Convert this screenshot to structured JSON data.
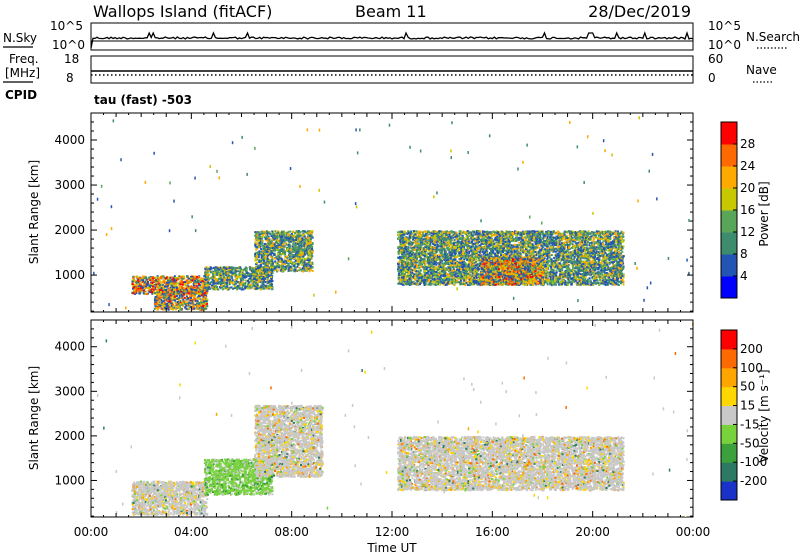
{
  "header": {
    "station": "Wallops Island (fitACF)",
    "beam": "Beam 11",
    "date": "28/Dec/2019"
  },
  "noise_panel": {
    "left_label": "N.Sky",
    "left_ticks": [
      "10^5",
      "10^0"
    ],
    "right_label": "N.Search",
    "right_ticks": [
      "10^5",
      "10^0"
    ]
  },
  "freq_panel": {
    "left_label_1": "Freq.",
    "left_label_2": "[MHz]",
    "left_ticks": [
      "18",
      "8"
    ],
    "cpid_label": "CPID",
    "right_label": "Nave",
    "right_ticks": [
      "60",
      "0"
    ],
    "mode_text": "tau (fast) -503"
  },
  "chart_data": [
    {
      "type": "heatmap",
      "panel": "power",
      "ylabel": "Slant Range [km]",
      "ylim": [
        180,
        4600
      ],
      "yticks": [
        1000,
        2000,
        3000,
        4000
      ],
      "xlim": [
        0,
        24
      ],
      "colorbar": {
        "label": "Power [dB]",
        "ticks": [
          "4",
          "8",
          "12",
          "16",
          "20",
          "24",
          "28"
        ],
        "colors": [
          "#0000ff",
          "#2356b4",
          "#3d8c6e",
          "#5aa658",
          "#c8c800",
          "#ffaa00",
          "#ff6a00",
          "#ff0000"
        ]
      },
      "regions": [
        {
          "t": [
            1.6,
            4.6
          ],
          "r": [
            600,
            1000
          ],
          "level": "high"
        },
        {
          "t": [
            2.5,
            4.6
          ],
          "r": [
            250,
            700
          ],
          "level": "high"
        },
        {
          "t": [
            4.5,
            7.2
          ],
          "r": [
            700,
            1200
          ],
          "level": "medium"
        },
        {
          "t": [
            6.5,
            8.8
          ],
          "r": [
            1100,
            2000
          ],
          "level": "medium"
        },
        {
          "t": [
            12.2,
            21.2
          ],
          "r": [
            800,
            2000
          ],
          "level": "medium"
        },
        {
          "t": [
            15.5,
            18.0
          ],
          "r": [
            800,
            1400
          ],
          "level": "high"
        }
      ]
    },
    {
      "type": "heatmap",
      "panel": "velocity",
      "xlabel": "Time UT",
      "ylabel": "Slant Range [km]",
      "ylim": [
        180,
        4600
      ],
      "yticks": [
        1000,
        2000,
        3000,
        4000
      ],
      "xlim": [
        0,
        24
      ],
      "xticks": [
        "00:00",
        "04:00",
        "08:00",
        "12:00",
        "16:00",
        "20:00",
        "00:00"
      ],
      "colorbar": {
        "label": "Velocity [m s⁻¹]",
        "ticks": [
          "200",
          "100",
          "50",
          "15",
          "-15",
          "-50",
          "-100",
          "-200"
        ],
        "colors": [
          "#1a32c8",
          "#2d7a64",
          "#3ca03c",
          "#78d23c",
          "#c8c8c8",
          "#ffd700",
          "#ffa500",
          "#ff6a00",
          "#ff0000"
        ]
      },
      "regions": [
        {
          "t": [
            1.6,
            4.6
          ],
          "r": [
            250,
            1000
          ],
          "level": "zero"
        },
        {
          "t": [
            4.5,
            7.2
          ],
          "r": [
            700,
            1500
          ],
          "level": "negative-small"
        },
        {
          "t": [
            6.5,
            9.2
          ],
          "r": [
            1100,
            2700
          ],
          "level": "zero"
        },
        {
          "t": [
            12.2,
            21.2
          ],
          "r": [
            800,
            2000
          ],
          "level": "zero"
        }
      ]
    }
  ]
}
